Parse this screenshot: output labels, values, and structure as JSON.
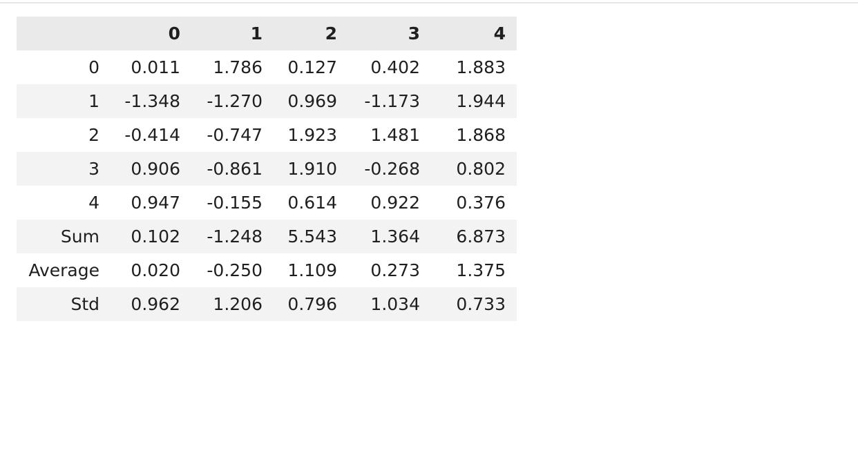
{
  "table": {
    "index_header": "",
    "columns": [
      "0",
      "1",
      "2",
      "3",
      "4"
    ],
    "rows": [
      {
        "label": "0",
        "values": [
          "0.011",
          "1.786",
          "0.127",
          "0.402",
          "1.883"
        ]
      },
      {
        "label": "1",
        "values": [
          "-1.348",
          "-1.270",
          "0.969",
          "-1.173",
          "1.944"
        ]
      },
      {
        "label": "2",
        "values": [
          "-0.414",
          "-0.747",
          "1.923",
          "1.481",
          "1.868"
        ]
      },
      {
        "label": "3",
        "values": [
          "0.906",
          "-0.861",
          "1.910",
          "-0.268",
          "0.802"
        ]
      },
      {
        "label": "4",
        "values": [
          "0.947",
          "-0.155",
          "0.614",
          "0.922",
          "0.376"
        ]
      },
      {
        "label": "Sum",
        "values": [
          "0.102",
          "-1.248",
          "5.543",
          "1.364",
          "6.873"
        ]
      },
      {
        "label": "Average",
        "values": [
          "0.020",
          "-0.250",
          "1.109",
          "0.273",
          "1.375"
        ]
      },
      {
        "label": "Std",
        "values": [
          "0.962",
          "1.206",
          "0.796",
          "1.034",
          "0.733"
        ]
      }
    ]
  },
  "colors": {
    "header_bg": "#eaeaea",
    "stripe_bg": "#f3f3f3",
    "text": "#1f1f1f"
  }
}
